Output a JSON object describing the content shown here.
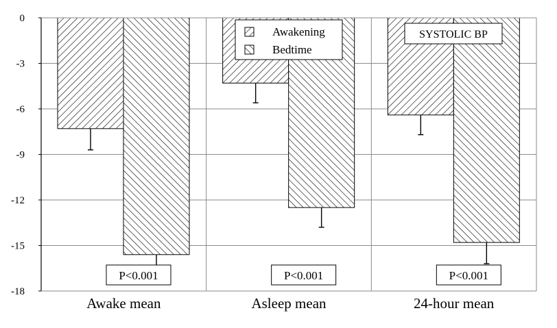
{
  "chart_data": {
    "type": "bar",
    "title": "",
    "xlabel": "",
    "ylabel": "",
    "annotation_box": "SYSTOLIC BP",
    "categories": [
      "Awake mean",
      "Asleep mean",
      "24-hour mean"
    ],
    "series": [
      {
        "name": "Awakening",
        "values": [
          -7.3,
          -4.3,
          -6.4
        ],
        "errors": [
          1.4,
          1.3,
          1.3
        ]
      },
      {
        "name": "Bedtime",
        "values": [
          -15.6,
          -12.5,
          -14.8
        ],
        "errors": [
          1.5,
          1.3,
          1.4
        ]
      }
    ],
    "p_values": [
      "P<0.001",
      "P<0.001",
      "P<0.001"
    ],
    "yticks": [
      0,
      -3,
      -6,
      -9,
      -12,
      -15,
      -18
    ],
    "ytick_labels": [
      "0",
      "-3",
      "-6",
      "-9",
      "-12",
      "-15",
      "-18"
    ],
    "ylim": [
      -18,
      0
    ],
    "grid": true,
    "legend_position": "top-center"
  }
}
